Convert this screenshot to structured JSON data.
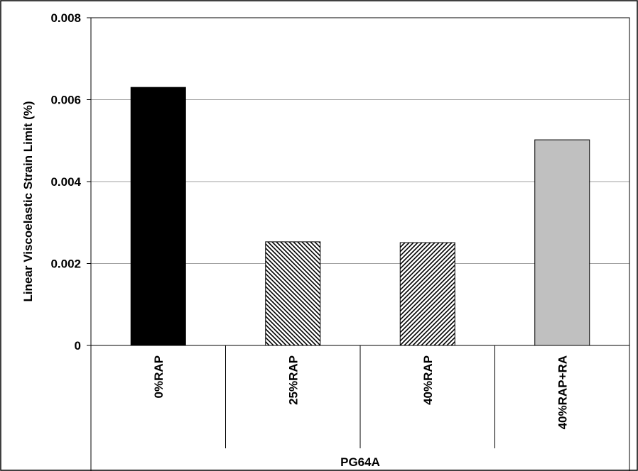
{
  "chart_data": {
    "type": "bar",
    "title": "",
    "ylabel": "Linear Viscoelastic Strain Limit (%)",
    "xlabel": "PG64A",
    "ylim": [
      0,
      0.008
    ],
    "yticks": [
      "0",
      "0.002",
      "0.004",
      "0.006",
      "0.008"
    ],
    "ytick_values": [
      0,
      0.002,
      0.004,
      0.006,
      0.008
    ],
    "grid": true,
    "legend": "none",
    "categories": [
      "0%RAP",
      "25%RAP",
      "40%RAP",
      "40%RAP+RA"
    ],
    "values": [
      0.0063,
      0.00253,
      0.00251,
      0.00502
    ],
    "bar_styles": [
      {
        "fill": "#000000",
        "pattern": "solid"
      },
      {
        "fill": "#ffffff",
        "pattern": "diagonal-down"
      },
      {
        "fill": "#ffffff",
        "pattern": "diagonal-up"
      },
      {
        "fill": "#c0c0c0",
        "pattern": "solid"
      }
    ],
    "colors": {
      "grid": "#a0a0a0",
      "axis": "#000000",
      "frame": "#000000"
    }
  }
}
